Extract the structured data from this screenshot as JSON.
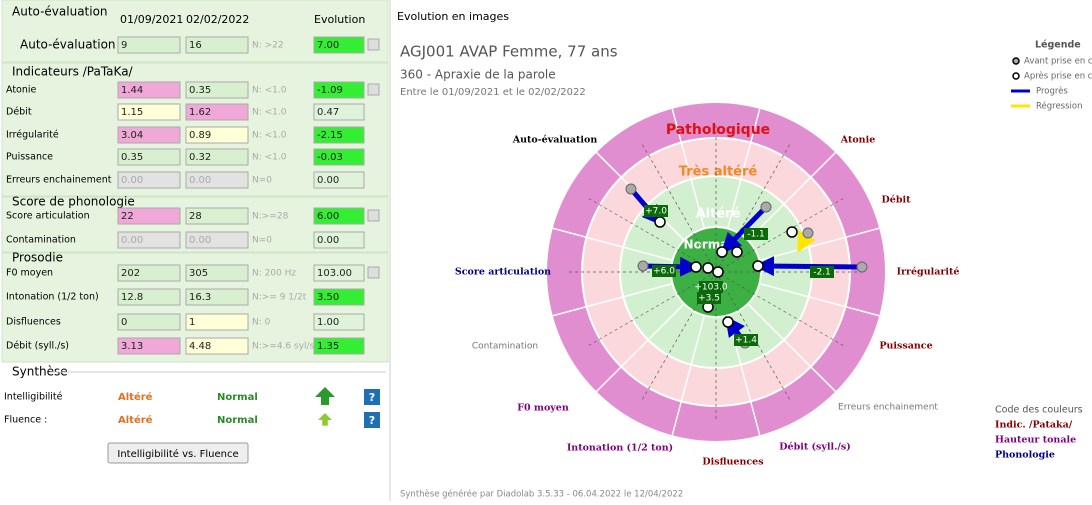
{
  "left": {
    "sections": [
      {
        "title": "Auto-évaluation",
        "columns": [
          "01/09/2021",
          "02/02/2022",
          "Evolution"
        ],
        "rows": [
          {
            "label": "Auto-évaluation",
            "before": "9",
            "after": "16",
            "norm": "N: >22",
            "evo": "7.00"
          }
        ]
      },
      {
        "title": "Indicateurs /PaTaKa/",
        "rows": [
          {
            "label": "Atonie",
            "before": "1.44",
            "after": "0.35",
            "norm": "N: <1.0",
            "evo": "-1.09"
          },
          {
            "label": "Débit",
            "before": "1.15",
            "after": "1.62",
            "norm": "N: <1.0",
            "evo": "0.47"
          },
          {
            "label": "Irrégularité",
            "before": "3.04",
            "after": "0.89",
            "norm": "N: <1.0",
            "evo": "-2.15"
          },
          {
            "label": "Puissance",
            "before": "0.35",
            "after": "0.32",
            "norm": "N: <1.0",
            "evo": "-0.03"
          },
          {
            "label": "Erreurs enchainement",
            "before": "0.00",
            "after": "0.00",
            "norm": "N=0",
            "evo": "0.00"
          }
        ]
      },
      {
        "title": "Score de phonologie",
        "rows": [
          {
            "label": "Score articulation",
            "before": "22",
            "after": "28",
            "norm": "N:>=28",
            "evo": "6.00"
          },
          {
            "label": "Contamination",
            "before": "0.00",
            "after": "0.00",
            "norm": "N=0",
            "evo": "0.00"
          }
        ]
      },
      {
        "title": "Prosodie",
        "rows": [
          {
            "label": "F0 moyen",
            "before": "202",
            "after": "305",
            "norm": "N: 200 Hz",
            "evo": "103.00"
          },
          {
            "label": "Intonation (1/2 ton)",
            "before": "12.8",
            "after": "16.3",
            "norm": "N:>= 9 1/2t",
            "evo": "3.50"
          },
          {
            "label": "Disfluences",
            "before": "0",
            "after": "1",
            "norm": "N: 0",
            "evo": "1.00"
          },
          {
            "label": "Débit (syll./s)",
            "before": "3.13",
            "after": "4.48",
            "norm": "N:>=4.6 syl/s",
            "evo": "1.35"
          }
        ]
      }
    ],
    "synthese": {
      "title": "Synthèse",
      "rows": [
        {
          "label": "Intelligibilité",
          "before": "Altéré",
          "after": "Normal",
          "help": "?"
        },
        {
          "label": "Fluence :",
          "before": "Altéré",
          "after": "Normal",
          "help": "?"
        }
      ],
      "button": "Intelligibilité vs. Fluence"
    }
  },
  "right": {
    "title": "Evolution en images",
    "patient": "AGJ001 AVAP Femme, 77 ans",
    "diagnosis": "360 - Apraxie de la parole",
    "period": "Entre le 01/09/2021 et le 02/02/2022",
    "zones": [
      "Pathologique",
      "Très altéré",
      "Altéré",
      "Normal"
    ],
    "axes": [
      "Auto-évaluation",
      "Atonie",
      "Débit",
      "Irrégularité",
      "Puissance",
      "Erreurs enchainement",
      "Débit (syll./s)",
      "Disfluences",
      "Intonation (1/2 ton)",
      "F0 moyen",
      "Contamination",
      "Score articulation"
    ],
    "deltas": [
      "+7.0",
      "-1.1",
      "-2.1",
      "+6.0",
      "+103.0",
      "+3.5",
      "+1.4"
    ],
    "legend": {
      "title": "Légende",
      "items": [
        "Avant prise en charge",
        "Après prise en charge",
        "Progrès",
        "Régression"
      ]
    },
    "colors": {
      "title": "Code des couleurs",
      "items": [
        "Indic. /Pataka/",
        "Hauteur tonale",
        "Phonologie"
      ]
    },
    "footer": "Synthèse générée par Diadolab 3.5.33 - 06.04.2022 le 12/04/2022"
  }
}
